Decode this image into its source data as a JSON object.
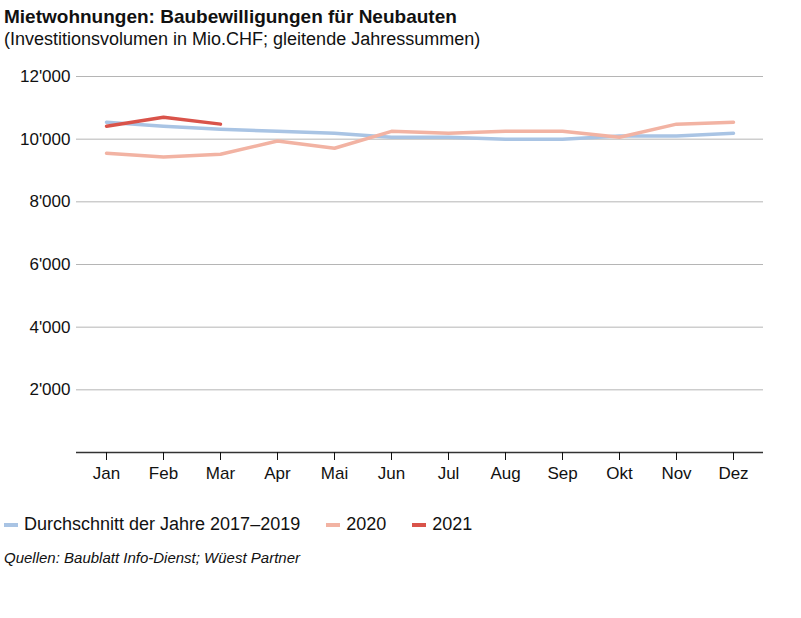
{
  "chart_data": {
    "type": "line",
    "title": "Mietwohnungen: Baubewilligungen für Neubauten",
    "subtitle": "(Investitionsvolumen in Mio.CHF; gleitende Jahressummen)",
    "caption": "Quellen: Baublatt Info-Dienst; Wüest Partner",
    "categories": [
      "Jan",
      "Feb",
      "Mar",
      "Apr",
      "Mai",
      "Jun",
      "Jul",
      "Aug",
      "Sep",
      "Okt",
      "Nov",
      "Dez"
    ],
    "series": [
      {
        "name": "Durchschnitt der Jahre 2017–2019",
        "color": "#a9c4e4",
        "values": [
          10540,
          10410,
          10320,
          10250,
          10190,
          10060,
          10060,
          10000,
          10000,
          10100,
          10100,
          10190
        ]
      },
      {
        "name": "2020",
        "color": "#f2b3a3",
        "values": [
          9550,
          9430,
          9520,
          9940,
          9710,
          10250,
          10190,
          10250,
          10250,
          10060,
          10480,
          10540
        ]
      },
      {
        "name": "2021",
        "color": "#d9534a",
        "values": [
          10410,
          10700,
          10480,
          null,
          null,
          null,
          null,
          null,
          null,
          null,
          null,
          null
        ]
      }
    ],
    "ylim": [
      0,
      12000
    ],
    "yticks": [
      {
        "value": 2000,
        "label": "2'000"
      },
      {
        "value": 4000,
        "label": "4'000"
      },
      {
        "value": 6000,
        "label": "6'000"
      },
      {
        "value": 8000,
        "label": "8'000"
      },
      {
        "value": 10000,
        "label": "10'000"
      },
      {
        "value": 12000,
        "label": "12'000"
      }
    ],
    "grid": true,
    "legend": "bottom"
  }
}
